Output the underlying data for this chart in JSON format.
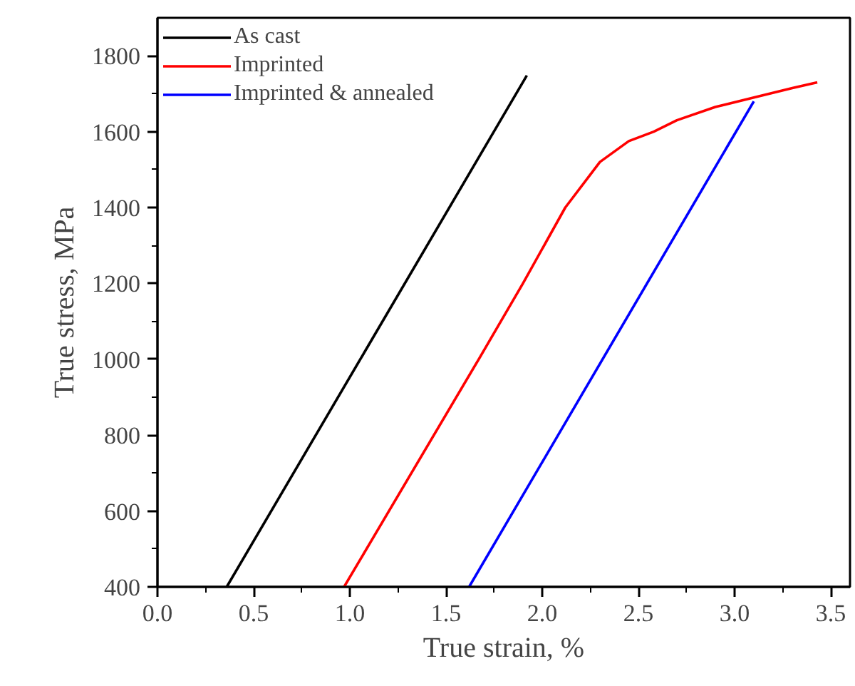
{
  "chart_data": {
    "type": "line",
    "xlabel": "True strain, %",
    "ylabel": "True stress, MPa",
    "xlim": [
      0,
      3.6
    ],
    "ylim": [
      400,
      1900
    ],
    "xticks": [
      {
        "value": 0,
        "label": "0.0"
      },
      0.5,
      {
        "value": 1,
        "label": "1.0"
      },
      1.5,
      {
        "value": 2,
        "label": "2.0"
      },
      2.5,
      {
        "value": 3,
        "label": "3.0"
      },
      3.5
    ],
    "yticks": [
      400,
      600,
      800,
      1000,
      1200,
      1400,
      1600,
      1800
    ],
    "grid": false,
    "legend": "top left",
    "marker": "none",
    "line_style": "solid",
    "series": [
      {
        "name": "As cast",
        "color": "#000000",
        "x": [
          0.36,
          1.92
        ],
        "values": [
          400,
          1748
        ]
      },
      {
        "name": "Imprinted",
        "color": "#ff0000",
        "x": [
          0.97,
          1.67,
          1.9,
          2.12,
          2.3,
          2.45,
          2.58,
          2.7,
          2.9,
          3.1,
          3.3,
          3.43
        ],
        "values": [
          400,
          1000,
          1200,
          1400,
          1520,
          1575,
          1600,
          1630,
          1665,
          1690,
          1715,
          1730
        ]
      },
      {
        "name": "Imprinted & annealed",
        "color": "#0000ff",
        "x": [
          1.62,
          3.1
        ],
        "values": [
          400,
          1680
        ]
      }
    ]
  }
}
